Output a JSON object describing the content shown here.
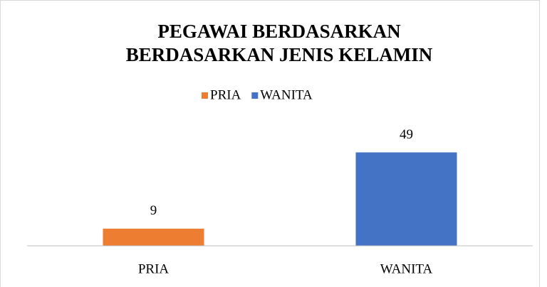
{
  "chart_data": {
    "type": "bar",
    "title": [
      "PEGAWAI BERDASARKAN",
      "BERDASARKAN JENIS KELAMIN"
    ],
    "categories": [
      "PRIA",
      "WANITA"
    ],
    "series": [
      {
        "name": "PRIA",
        "color": "#ed7d31",
        "values": [
          9,
          null
        ]
      },
      {
        "name": "WANITA",
        "color": "#4472c4",
        "values": [
          null,
          49
        ]
      }
    ],
    "ylim": [
      0,
      60
    ],
    "legend": "top"
  }
}
